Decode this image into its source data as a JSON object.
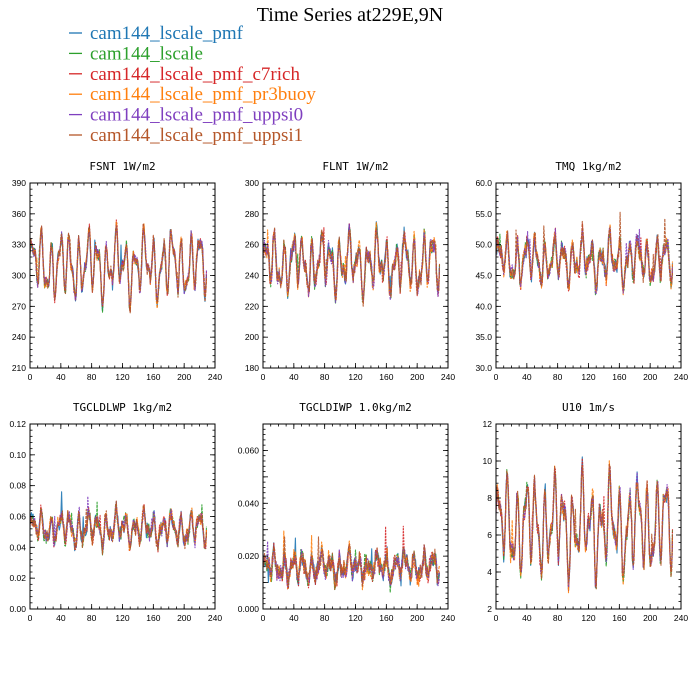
{
  "figure": {
    "title": "Time Series at229E,9N"
  },
  "legend": [
    {
      "label": "cam144_lscale_pmf",
      "color": "#1f77b4"
    },
    {
      "label": "cam144_lscale",
      "color": "#2ca02c"
    },
    {
      "label": "cam144_lscale_pmf_c7rich",
      "color": "#d62728"
    },
    {
      "label": "cam144_lscale_pmf_pr3buoy",
      "color": "#ff7f0e"
    },
    {
      "label": "cam144_lscale_pmf_uppsi0",
      "color": "#7f3fbf"
    },
    {
      "label": "cam144_lscale_pmf_uppsi1",
      "color": "#b5572a"
    }
  ],
  "chart_data": [
    {
      "type": "line",
      "title": "FSNT   1W/m2",
      "xlim": [
        0,
        240
      ],
      "ylim": [
        210,
        390
      ],
      "xticks": [
        "0",
        "40",
        "80",
        "120",
        "160",
        "200",
        "240"
      ],
      "yticks": [
        "210",
        "240",
        "270",
        "300",
        "330",
        "360",
        "390"
      ],
      "series_names": [
        "cam144_lscale_pmf",
        "cam144_lscale",
        "cam144_lscale_pmf_c7rich",
        "cam144_lscale_pmf_pr3buoy",
        "cam144_lscale_pmf_uppsi0",
        "cam144_lscale_pmf_uppsi1"
      ],
      "x_count": 230,
      "center": 310,
      "amplitude": 38,
      "noise": 10
    },
    {
      "type": "line",
      "title": "FLNT   1W/m2",
      "xlim": [
        0,
        240
      ],
      "ylim": [
        180,
        300
      ],
      "xticks": [
        "0",
        "40",
        "80",
        "120",
        "160",
        "200",
        "240"
      ],
      "yticks": [
        "180",
        "200",
        "220",
        "240",
        "260",
        "280",
        "300"
      ],
      "series_names": [
        "cam144_lscale_pmf",
        "cam144_lscale",
        "cam144_lscale_pmf_c7rich",
        "cam144_lscale_pmf_pr3buoy",
        "cam144_lscale_pmf_uppsi0",
        "cam144_lscale_pmf_uppsi1"
      ],
      "x_count": 230,
      "center": 248,
      "amplitude": 22,
      "noise": 9
    },
    {
      "type": "line",
      "title": "TMQ   1kg/m2",
      "xlim": [
        0,
        240
      ],
      "ylim": [
        30,
        60
      ],
      "xticks": [
        "0",
        "40",
        "80",
        "120",
        "160",
        "200",
        "240"
      ],
      "yticks": [
        "30.0",
        "35.0",
        "40.0",
        "45.0",
        "50.0",
        "55.0",
        "60.0"
      ],
      "series_names": [
        "cam144_lscale_pmf",
        "cam144_lscale",
        "cam144_lscale_pmf_c7rich",
        "cam144_lscale_pmf_pr3buoy",
        "cam144_lscale_pmf_uppsi0",
        "cam144_lscale_pmf_uppsi1"
      ],
      "x_count": 230,
      "center": 47.5,
      "amplitude": 4.5,
      "noise": 2.2
    },
    {
      "type": "line",
      "title": "TGCLDLWP   1kg/m2",
      "xlim": [
        0,
        240
      ],
      "ylim": [
        0,
        0.12
      ],
      "xticks": [
        "0",
        "40",
        "80",
        "120",
        "160",
        "200",
        "240"
      ],
      "yticks": [
        "0.00",
        "0.02",
        "0.04",
        "0.06",
        "0.08",
        "0.10",
        "0.12"
      ],
      "series_names": [
        "cam144_lscale_pmf",
        "cam144_lscale",
        "cam144_lscale_pmf_c7rich",
        "cam144_lscale_pmf_pr3buoy",
        "cam144_lscale_pmf_uppsi0",
        "cam144_lscale_pmf_uppsi1"
      ],
      "x_count": 230,
      "center": 0.052,
      "amplitude": 0.012,
      "noise": 0.008
    },
    {
      "type": "line",
      "title": "TGCLDIWP   1.0kg/m2",
      "xlim": [
        0,
        240
      ],
      "ylim": [
        0,
        0.07
      ],
      "xticks": [
        "0",
        "40",
        "80",
        "120",
        "160",
        "200",
        "240"
      ],
      "yticks": [
        "0.000",
        "",
        "0.020",
        "",
        "0.040",
        "",
        "0.060",
        ""
      ],
      "series_names": [
        "cam144_lscale_pmf",
        "cam144_lscale",
        "cam144_lscale_pmf_c7rich",
        "cam144_lscale_pmf_pr3buoy",
        "cam144_lscale_pmf_uppsi0",
        "cam144_lscale_pmf_uppsi1"
      ],
      "x_count": 230,
      "center": 0.016,
      "amplitude": 0.006,
      "noise": 0.006
    },
    {
      "type": "line",
      "title": "U10   1m/s",
      "xlim": [
        0,
        240
      ],
      "ylim": [
        2,
        12
      ],
      "xticks": [
        "0",
        "40",
        "80",
        "120",
        "160",
        "200",
        "240"
      ],
      "yticks": [
        "2",
        "4",
        "6",
        "8",
        "10",
        "12"
      ],
      "series_names": [
        "cam144_lscale_pmf",
        "cam144_lscale",
        "cam144_lscale_pmf_c7rich",
        "cam144_lscale_pmf_pr3buoy",
        "cam144_lscale_pmf_uppsi0",
        "cam144_lscale_pmf_uppsi1"
      ],
      "x_count": 230,
      "center": 6.5,
      "amplitude": 3.0,
      "noise": 0.8
    }
  ]
}
